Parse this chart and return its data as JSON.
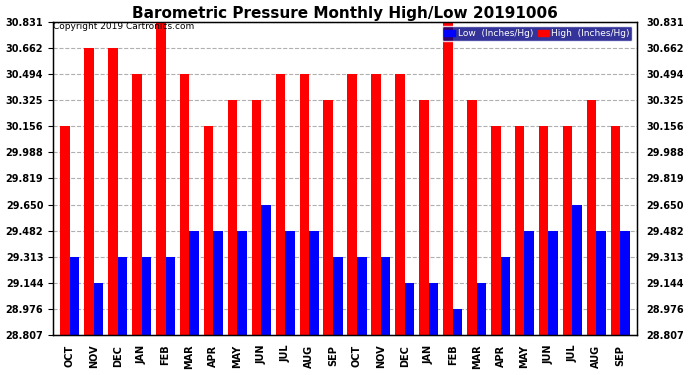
{
  "title": "Barometric Pressure Monthly High/Low 20191006",
  "copyright": "Copyright 2019 Cartronics.com",
  "months": [
    "OCT",
    "NOV",
    "DEC",
    "JAN",
    "FEB",
    "MAR",
    "APR",
    "MAY",
    "JUN",
    "JUL",
    "AUG",
    "SEP",
    "OCT",
    "NOV",
    "DEC",
    "JAN",
    "FEB",
    "MAR",
    "APR",
    "MAY",
    "JUN",
    "JUL",
    "AUG",
    "SEP"
  ],
  "high_values": [
    30.156,
    30.662,
    30.662,
    30.494,
    30.831,
    30.494,
    30.156,
    30.325,
    30.325,
    30.494,
    30.494,
    30.325,
    30.494,
    30.494,
    30.494,
    30.325,
    30.831,
    30.325,
    30.156,
    30.156,
    30.156,
    30.156,
    30.325,
    30.156
  ],
  "low_values": [
    29.313,
    29.144,
    29.313,
    29.313,
    29.313,
    29.482,
    29.482,
    29.482,
    29.65,
    29.482,
    29.482,
    29.313,
    29.313,
    29.313,
    29.144,
    29.144,
    28.976,
    29.144,
    29.313,
    29.482,
    29.482,
    29.65,
    29.482,
    29.482
  ],
  "bar_color_high": "#ff0000",
  "bar_color_low": "#0000ff",
  "background_color": "#ffffff",
  "grid_color": "#b0b0b0",
  "yticks": [
    28.807,
    28.976,
    29.144,
    29.313,
    29.482,
    29.65,
    29.819,
    29.988,
    30.156,
    30.325,
    30.494,
    30.662,
    30.831
  ],
  "ylim_min": 28.807,
  "ylim_max": 30.831,
  "title_fontsize": 11,
  "axis_fontsize": 7,
  "legend_low_label": "Low  (Inches/Hg)",
  "legend_high_label": "High  (Inches/Hg)"
}
